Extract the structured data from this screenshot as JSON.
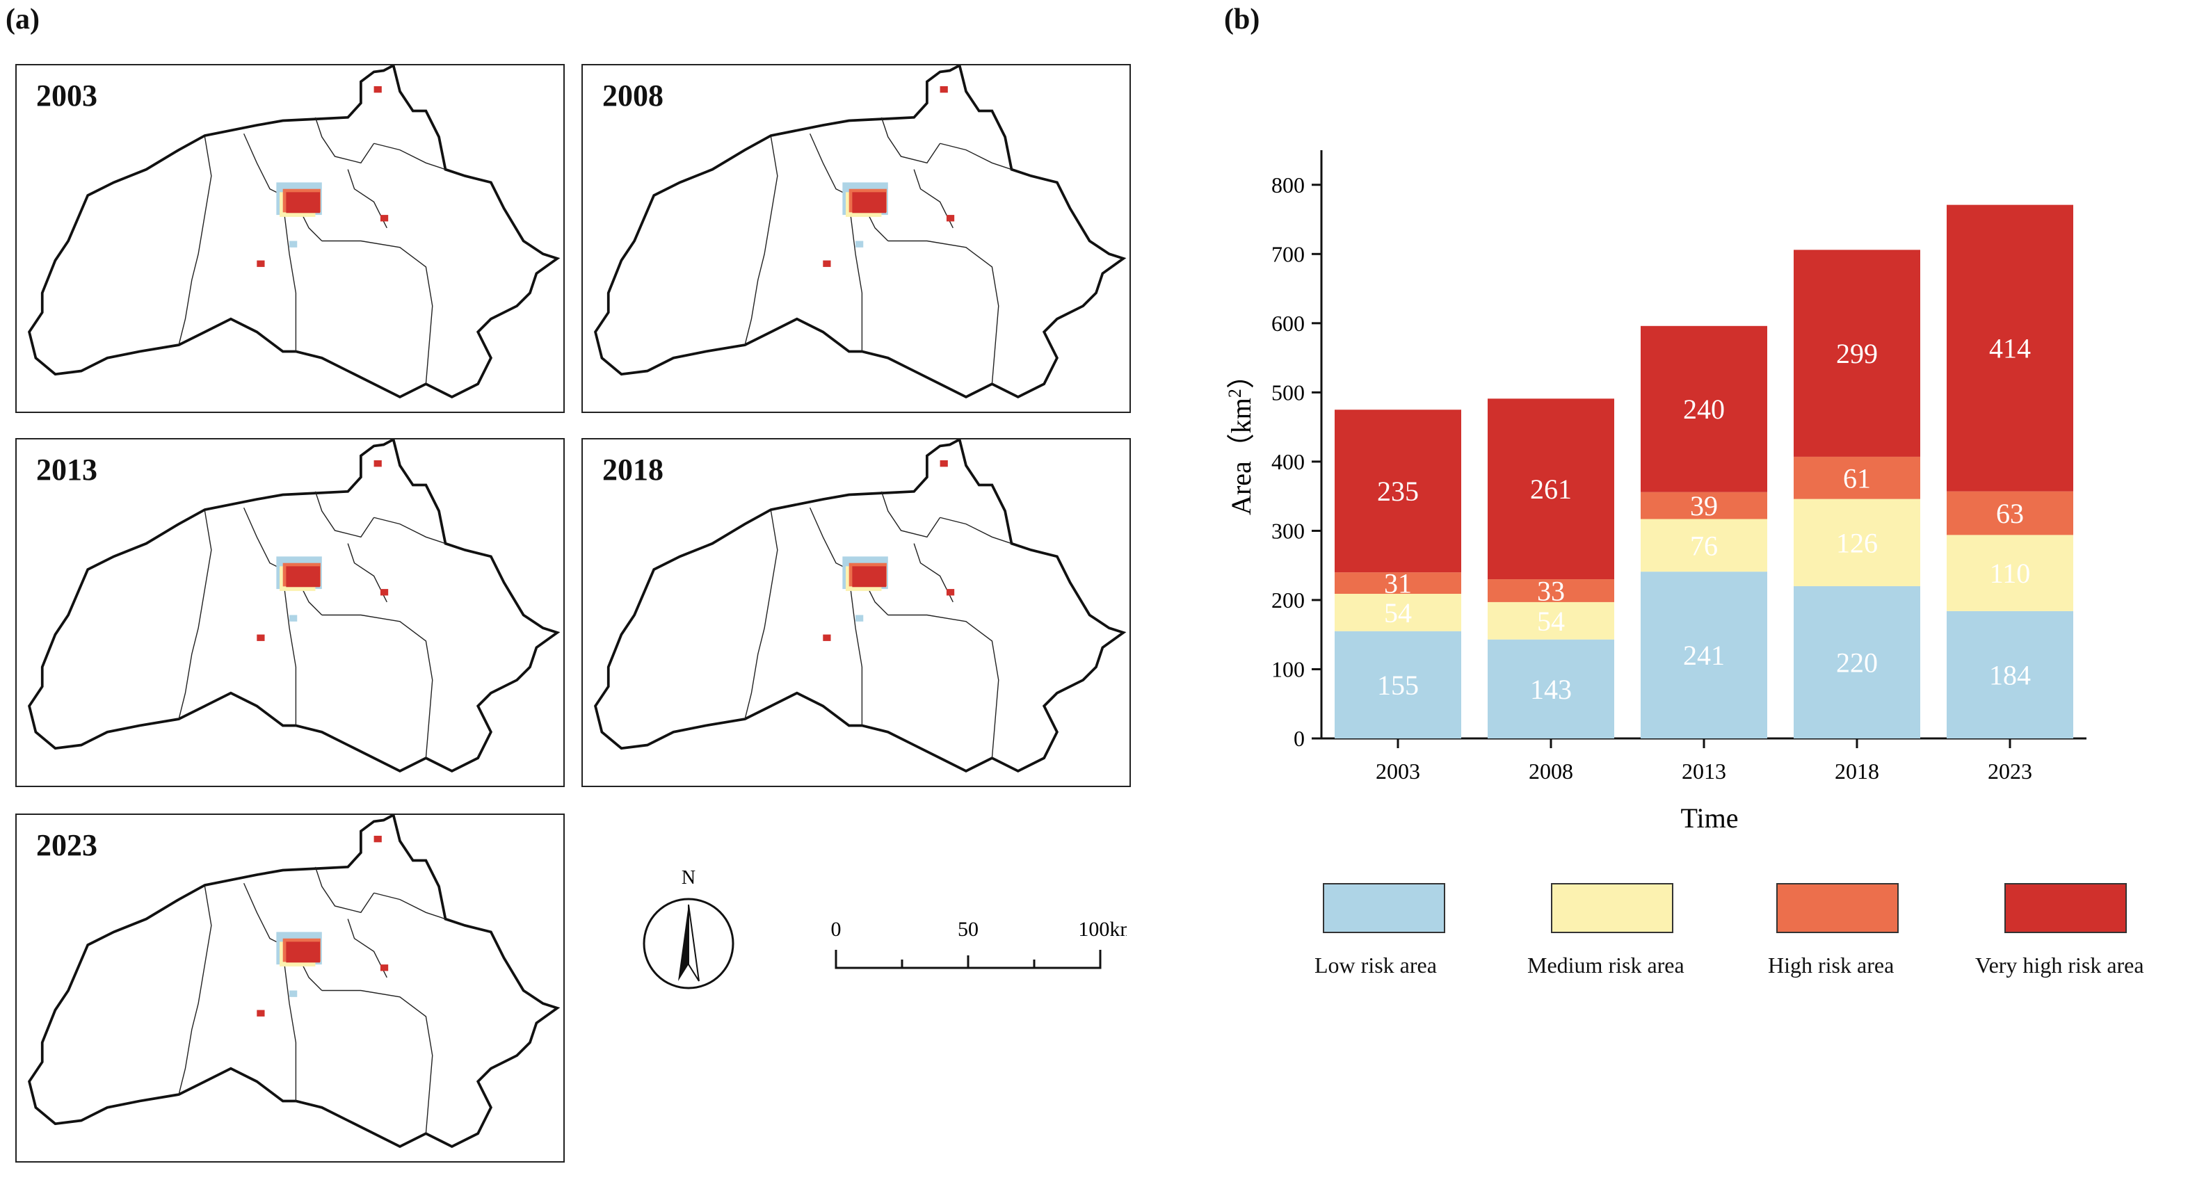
{
  "panel_a_label": "(a)",
  "panel_b_label": "(b)",
  "maps": [
    {
      "year": "2003"
    },
    {
      "year": "2008"
    },
    {
      "year": "2013"
    },
    {
      "year": "2018"
    },
    {
      "year": "2023"
    }
  ],
  "compass": {
    "north_label": "N"
  },
  "scale_bar": {
    "labels": [
      "0",
      "50",
      "100km"
    ]
  },
  "colors": {
    "low": "#aed4e6",
    "medium": "#fcf2b0",
    "high": "#ec6f4c",
    "very_high": "#d0302c"
  },
  "chart_data": {
    "type": "bar",
    "stacked": true,
    "categories": [
      "2003",
      "2008",
      "2013",
      "2018",
      "2023"
    ],
    "series": [
      {
        "name": "Low risk area",
        "color": "#aed4e6",
        "label_color": "#ffffff",
        "values": [
          155,
          143,
          241,
          220,
          184
        ]
      },
      {
        "name": "Medium risk area",
        "color": "#fcf2b0",
        "label_color": "#ffffff",
        "values": [
          54,
          54,
          76,
          126,
          110
        ]
      },
      {
        "name": "High risk area",
        "color": "#ec6f4c",
        "label_color": "#ffffff",
        "values": [
          31,
          33,
          39,
          61,
          63
        ]
      },
      {
        "name": "Very high risk area",
        "color": "#d0302c",
        "label_color": "#ffffff",
        "values": [
          235,
          261,
          240,
          299,
          414
        ]
      }
    ],
    "xlabel": "Time",
    "ylabel": "Area（km²）",
    "ylabel_main": "Area（km",
    "ylabel_sup": "2",
    "ylabel_close": "）",
    "ylim": [
      0,
      850
    ],
    "yticks": [
      0,
      100,
      200,
      300,
      400,
      500,
      600,
      700,
      800
    ],
    "legend_position": "bottom",
    "grid": false
  }
}
